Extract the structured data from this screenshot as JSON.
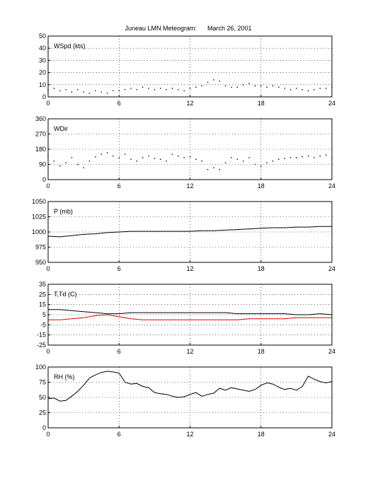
{
  "title": "Juneau LMN Meteogram:      March 26, 2001",
  "chart_data": [
    {
      "type": "scatter",
      "label": "WSpd (kts)",
      "xlim": [
        0,
        24
      ],
      "ylim": [
        0,
        50
      ],
      "xticks": [
        0,
        6,
        12,
        18,
        24
      ],
      "yticks": [
        0,
        10,
        20,
        30,
        40,
        50
      ],
      "grid": true,
      "series": [
        {
          "color": "#000000",
          "marker": "dot",
          "x": [
            0,
            0.5,
            1,
            1.5,
            2,
            2.5,
            3,
            3.5,
            4,
            4.5,
            5,
            5.5,
            6,
            6.5,
            7,
            7.5,
            8,
            8.5,
            9,
            9.5,
            10,
            10.5,
            11,
            11.5,
            12,
            12.5,
            13,
            13.5,
            14,
            14.5,
            15,
            15.5,
            16,
            16.5,
            17,
            17.5,
            18,
            18.5,
            19,
            19.5,
            20,
            20.5,
            21,
            21.5,
            22,
            22.5,
            23,
            23.5,
            24
          ],
          "y": [
            6,
            7,
            5,
            6,
            4,
            6,
            4,
            3,
            5,
            4,
            3,
            5,
            5,
            6,
            7,
            6,
            8,
            7,
            6,
            7,
            6,
            7,
            6,
            5,
            7,
            8,
            9,
            12,
            14,
            13,
            9,
            8,
            8,
            10,
            11,
            9,
            9,
            8,
            9,
            8,
            7,
            6,
            7,
            6,
            5,
            6,
            7,
            7,
            8
          ]
        }
      ]
    },
    {
      "type": "scatter",
      "label": "WDir",
      "xlim": [
        0,
        24
      ],
      "ylim": [
        0,
        360
      ],
      "xticks": [
        0,
        6,
        12,
        18,
        24
      ],
      "yticks": [
        0,
        90,
        180,
        270,
        360
      ],
      "grid": true,
      "series": [
        {
          "color": "#000000",
          "marker": "dot",
          "x": [
            0,
            0.5,
            1,
            1.5,
            2,
            2.5,
            3,
            3.5,
            4,
            4.5,
            5,
            5.5,
            6,
            6.5,
            7,
            7.5,
            8,
            8.5,
            9,
            9.5,
            10,
            10.5,
            11,
            11.5,
            12,
            12.5,
            13,
            13.5,
            14,
            14.5,
            15,
            15.5,
            16,
            16.5,
            17,
            17.5,
            18,
            18.5,
            19,
            19.5,
            20,
            20.5,
            21,
            21.5,
            22,
            22.5,
            23,
            23.5,
            24
          ],
          "y": [
            140,
            110,
            80,
            100,
            130,
            90,
            70,
            110,
            135,
            150,
            160,
            140,
            130,
            150,
            120,
            110,
            130,
            140,
            125,
            120,
            110,
            150,
            140,
            130,
            135,
            120,
            110,
            60,
            70,
            60,
            100,
            130,
            120,
            110,
            130,
            90,
            80,
            100,
            110,
            120,
            125,
            130,
            130,
            135,
            140,
            130,
            140,
            145,
            130
          ]
        }
      ]
    },
    {
      "type": "line",
      "label": "P (mb)",
      "xlim": [
        0,
        24
      ],
      "ylim": [
        950,
        1050
      ],
      "xticks": [
        0,
        6,
        12,
        18,
        24
      ],
      "yticks": [
        950,
        975,
        1000,
        1025,
        1050
      ],
      "grid": true,
      "series": [
        {
          "color": "#000000",
          "x": [
            0,
            1,
            2,
            3,
            4,
            5,
            6,
            7,
            8,
            9,
            10,
            11,
            12,
            13,
            14,
            15,
            16,
            17,
            18,
            19,
            20,
            21,
            22,
            23,
            24
          ],
          "y": [
            993,
            992,
            994,
            996,
            997,
            999,
            1000,
            1001,
            1001,
            1001,
            1001,
            1001,
            1001,
            1002,
            1002,
            1003,
            1004,
            1005,
            1006,
            1007,
            1007,
            1008,
            1008,
            1009,
            1009
          ]
        }
      ]
    },
    {
      "type": "line",
      "label": "T,Td (C)",
      "xlim": [
        0,
        24
      ],
      "ylim": [
        -25,
        35
      ],
      "xticks": [
        0,
        6,
        12,
        18,
        24
      ],
      "yticks": [
        -25,
        -15,
        -5,
        5,
        15,
        25,
        35
      ],
      "grid": true,
      "series": [
        {
          "color": "#000000",
          "x": [
            0,
            1,
            2,
            3,
            4,
            5,
            6,
            7,
            8,
            9,
            10,
            11,
            12,
            13,
            14,
            15,
            16,
            17,
            18,
            19,
            20,
            21,
            22,
            23,
            24
          ],
          "y": [
            10,
            10,
            9,
            8,
            7,
            6,
            6,
            7,
            7,
            7,
            7,
            7,
            7,
            7,
            7,
            7,
            6,
            6,
            6,
            6,
            6,
            5,
            5,
            6,
            5
          ]
        },
        {
          "color": "#e00000",
          "x": [
            0,
            1,
            2,
            3,
            4,
            5,
            6,
            7,
            8,
            9,
            10,
            11,
            12,
            13,
            14,
            15,
            16,
            17,
            18,
            19,
            20,
            21,
            22,
            23,
            24
          ],
          "y": [
            0,
            0,
            1,
            2,
            4,
            5,
            3,
            1,
            0,
            0,
            0,
            0,
            0,
            0,
            0,
            0,
            0,
            1,
            1,
            1,
            1,
            2,
            2,
            2,
            2
          ]
        }
      ]
    },
    {
      "type": "line",
      "label": "RH (%)",
      "xlim": [
        0,
        24
      ],
      "ylim": [
        0,
        100
      ],
      "xticks": [
        0,
        6,
        12,
        18,
        24
      ],
      "yticks": [
        0,
        25,
        50,
        75,
        100
      ],
      "grid": true,
      "series": [
        {
          "color": "#000000",
          "x": [
            0,
            0.5,
            1,
            1.5,
            2,
            2.5,
            3,
            3.5,
            4,
            4.5,
            5,
            5.5,
            6,
            6.5,
            7,
            7.5,
            8,
            8.5,
            9,
            9.5,
            10,
            10.5,
            11,
            11.5,
            12,
            12.5,
            13,
            13.5,
            14,
            14.5,
            15,
            15.5,
            16,
            16.5,
            17,
            17.5,
            18,
            18.5,
            19,
            19.5,
            20,
            20.5,
            21,
            21.5,
            22,
            22.5,
            23,
            23.5,
            24
          ],
          "y": [
            48,
            49,
            44,
            45,
            52,
            60,
            70,
            82,
            87,
            91,
            93,
            92,
            90,
            75,
            72,
            73,
            68,
            66,
            58,
            56,
            55,
            52,
            50,
            51,
            55,
            58,
            52,
            55,
            57,
            65,
            62,
            66,
            64,
            62,
            60,
            63,
            70,
            74,
            72,
            67,
            63,
            65,
            62,
            68,
            85,
            80,
            76,
            74,
            76
          ]
        }
      ]
    }
  ]
}
